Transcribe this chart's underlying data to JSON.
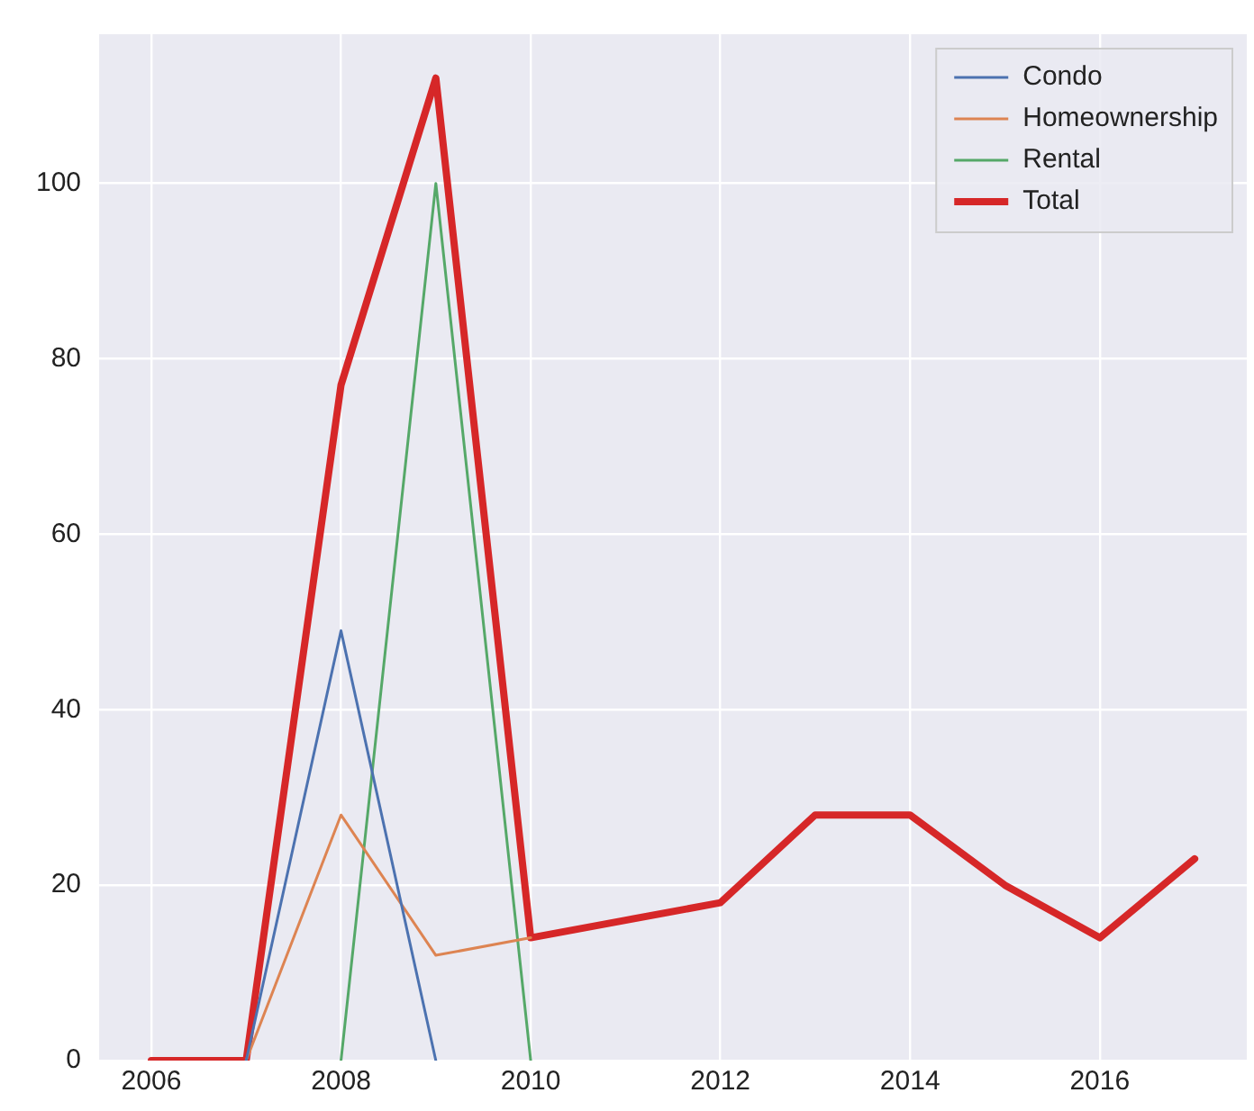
{
  "chart_data": {
    "type": "line",
    "xlim": [
      2005.45,
      2017.55
    ],
    "xticks": [
      2006,
      2008,
      2010,
      2012,
      2014,
      2016
    ],
    "ylim": [
      0,
      117
    ],
    "yticks": [
      0,
      20,
      40,
      60,
      80,
      100
    ],
    "grid": true,
    "legend": "top right",
    "marker": "none",
    "line_style": "solid",
    "series": [
      {
        "name": "Condo",
        "color": "#4c72b0",
        "x": [
          2007,
          2008,
          2009
        ],
        "values": [
          0,
          49,
          0
        ]
      },
      {
        "name": "Homeownership",
        "color": "#dd8452",
        "x": [
          2007,
          2008,
          2009,
          2010
        ],
        "values": [
          0,
          28,
          12,
          14
        ]
      },
      {
        "name": "Rental",
        "color": "#55a868",
        "x": [
          2008,
          2009,
          2010
        ],
        "values": [
          0,
          100,
          0
        ]
      },
      {
        "name": "Total",
        "color": "#d62728",
        "x": [
          2006,
          2007,
          2008,
          2009,
          2010,
          2011,
          2012,
          2013,
          2014,
          2015,
          2016,
          2017
        ],
        "values": [
          0,
          0,
          77,
          112,
          14,
          16,
          18,
          28,
          28,
          20,
          14,
          23
        ]
      }
    ]
  }
}
